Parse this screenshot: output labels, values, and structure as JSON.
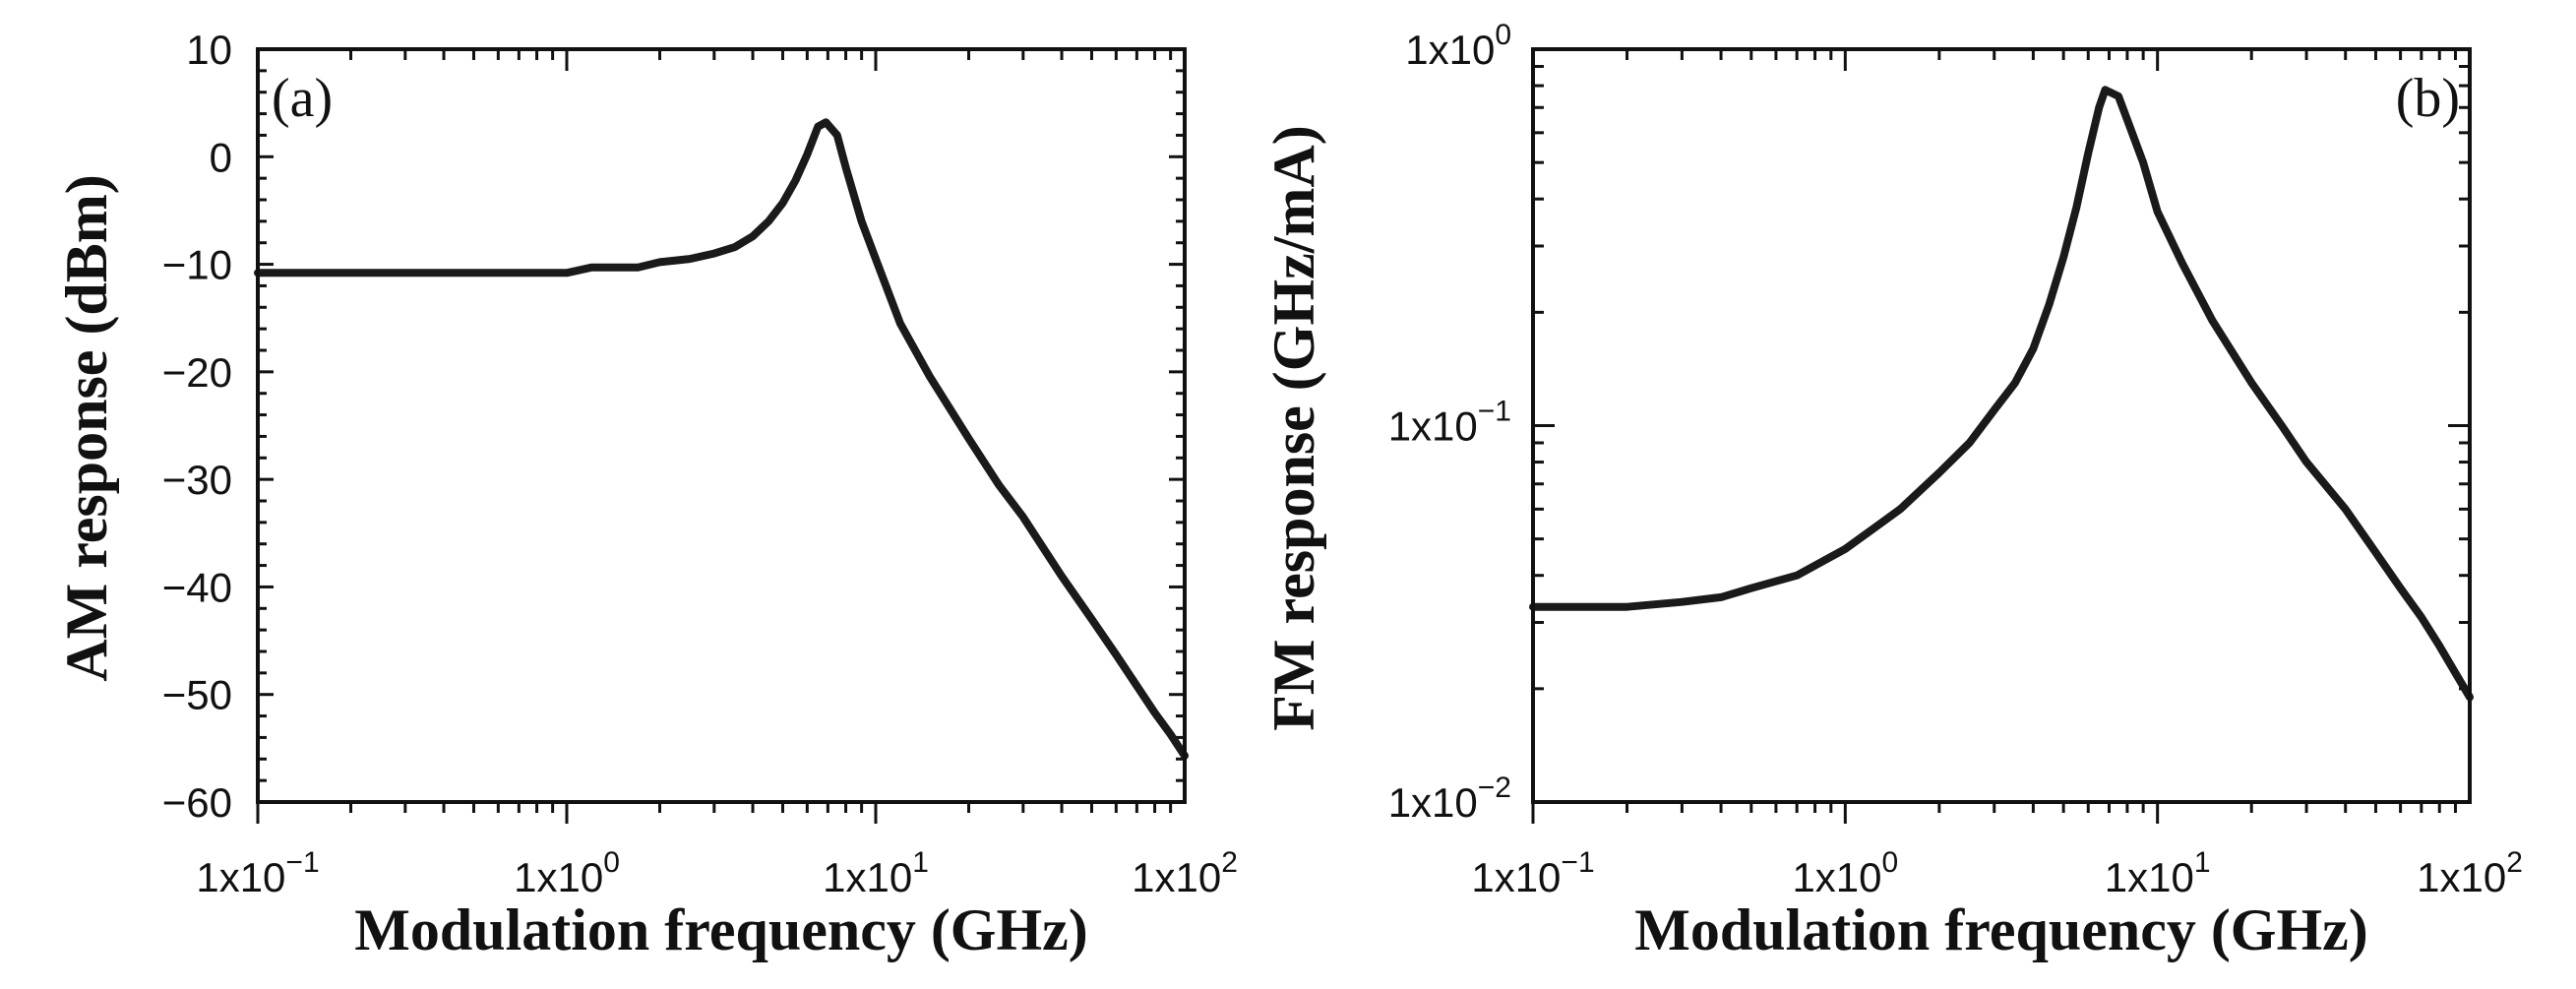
{
  "chart_data": [
    {
      "type": "line",
      "panel_label": "(a)",
      "xlabel": "Modulation frequency (GHz)",
      "ylabel": "AM response (dBm)",
      "x_scale": "log",
      "y_scale": "linear",
      "xlim": [
        0.1,
        100
      ],
      "ylim": [
        -60,
        10
      ],
      "x_ticks": [
        {
          "value": 0.1,
          "mant": "1x10",
          "exp": "−1"
        },
        {
          "value": 1,
          "mant": "1x10",
          "exp": "0"
        },
        {
          "value": 10,
          "mant": "1x10",
          "exp": "1"
        },
        {
          "value": 100,
          "mant": "1x10",
          "exp": "2"
        }
      ],
      "y_ticks": [
        {
          "value": 10,
          "label": "10"
        },
        {
          "value": 0,
          "label": "0"
        },
        {
          "value": -10,
          "label": "−10"
        },
        {
          "value": -20,
          "label": "−20"
        },
        {
          "value": -30,
          "label": "−30"
        },
        {
          "value": -40,
          "label": "−40"
        },
        {
          "value": -50,
          "label": "−50"
        },
        {
          "value": -60,
          "label": "−60"
        }
      ],
      "series": [
        {
          "x": [
            0.1,
            0.3,
            0.6,
            1.0,
            1.2,
            1.7,
            2.0,
            2.5,
            3.0,
            3.5,
            4.0,
            4.5,
            5.0,
            5.5,
            6.0,
            6.5,
            6.9,
            7.5,
            8.0,
            9.0,
            10,
            12,
            15,
            20,
            25,
            30,
            40,
            50,
            60,
            70,
            80,
            90,
            100
          ],
          "y": [
            -10.8,
            -10.8,
            -10.8,
            -10.8,
            -10.3,
            -10.3,
            -9.8,
            -9.5,
            -9.0,
            -8.4,
            -7.4,
            -6.0,
            -4.3,
            -2.2,
            0.2,
            2.8,
            3.2,
            2.0,
            -1.0,
            -6.0,
            -9.5,
            -15.5,
            -20.5,
            -26.2,
            -30.5,
            -33.5,
            -39.0,
            -43.0,
            -46.3,
            -49.2,
            -51.7,
            -53.7,
            -55.7
          ]
        }
      ]
    },
    {
      "type": "line",
      "panel_label": "(b)",
      "xlabel": "Modulation frequency (GHz)",
      "ylabel": "FM response (GHz/mA)",
      "x_scale": "log",
      "y_scale": "log",
      "xlim": [
        0.1,
        100
      ],
      "ylim": [
        0.01,
        1
      ],
      "x_ticks": [
        {
          "value": 0.1,
          "mant": "1x10",
          "exp": "−1"
        },
        {
          "value": 1,
          "mant": "1x10",
          "exp": "0"
        },
        {
          "value": 10,
          "mant": "1x10",
          "exp": "1"
        },
        {
          "value": 100,
          "mant": "1x10",
          "exp": "2"
        }
      ],
      "y_ticks": [
        {
          "value": 1,
          "mant": "1x10",
          "exp": "0"
        },
        {
          "value": 0.1,
          "mant": "1x10",
          "exp": "−1"
        },
        {
          "value": 0.01,
          "mant": "1x10",
          "exp": "−2"
        }
      ],
      "series": [
        {
          "x": [
            0.1,
            0.15,
            0.2,
            0.3,
            0.4,
            0.5,
            0.7,
            1.0,
            1.5,
            2.0,
            2.5,
            3.0,
            3.5,
            4.0,
            4.5,
            5.0,
            5.5,
            6.0,
            6.5,
            6.8,
            7.5,
            8.0,
            9.0,
            10,
            12,
            15,
            20,
            25,
            30,
            40,
            50,
            60,
            70,
            80,
            90,
            100
          ],
          "y": [
            0.033,
            0.033,
            0.033,
            0.034,
            0.035,
            0.037,
            0.04,
            0.047,
            0.06,
            0.075,
            0.09,
            0.11,
            0.13,
            0.16,
            0.21,
            0.28,
            0.38,
            0.53,
            0.7,
            0.78,
            0.75,
            0.65,
            0.5,
            0.37,
            0.27,
            0.19,
            0.13,
            0.1,
            0.08,
            0.06,
            0.046,
            0.037,
            0.031,
            0.026,
            0.022,
            0.019
          ]
        }
      ]
    }
  ]
}
